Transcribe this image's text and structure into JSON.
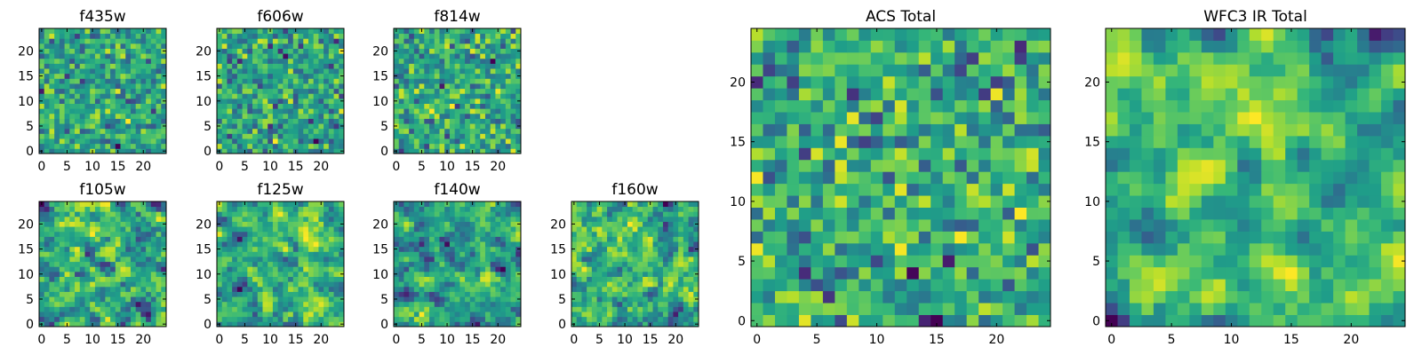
{
  "chart_data": [
    {
      "type": "heatmap",
      "title": "f435w",
      "grid_size": [
        25,
        25
      ],
      "xlim": [
        -0.5,
        24.5
      ],
      "ylim": [
        -0.5,
        24.5
      ],
      "xticks": [
        "0",
        "5",
        "10",
        "15",
        "20"
      ],
      "yticks": [
        "0",
        "5",
        "10",
        "15",
        "20"
      ],
      "colormap": "viridis",
      "seed": 11,
      "smoothing": 0
    },
    {
      "type": "heatmap",
      "title": "f606w",
      "grid_size": [
        25,
        25
      ],
      "xlim": [
        -0.5,
        24.5
      ],
      "ylim": [
        -0.5,
        24.5
      ],
      "xticks": [
        "0",
        "5",
        "10",
        "15",
        "20"
      ],
      "yticks": [
        "0",
        "5",
        "10",
        "15",
        "20"
      ],
      "colormap": "viridis",
      "seed": 23,
      "smoothing": 0
    },
    {
      "type": "heatmap",
      "title": "f814w",
      "grid_size": [
        25,
        25
      ],
      "xlim": [
        -0.5,
        24.5
      ],
      "ylim": [
        -0.5,
        24.5
      ],
      "xticks": [
        "0",
        "5",
        "10",
        "15",
        "20"
      ],
      "yticks": [
        "0",
        "5",
        "10",
        "15",
        "20"
      ],
      "colormap": "viridis",
      "seed": 37,
      "smoothing": 0
    },
    {
      "type": "heatmap",
      "title": "f105w",
      "grid_size": [
        25,
        25
      ],
      "xlim": [
        -0.5,
        24.5
      ],
      "ylim": [
        -0.5,
        24.5
      ],
      "xticks": [
        "0",
        "5",
        "10",
        "15",
        "20"
      ],
      "yticks": [
        "0",
        "5",
        "10",
        "15",
        "20"
      ],
      "colormap": "viridis",
      "seed": 41,
      "smoothing": 2
    },
    {
      "type": "heatmap",
      "title": "f125w",
      "grid_size": [
        25,
        25
      ],
      "xlim": [
        -0.5,
        24.5
      ],
      "ylim": [
        -0.5,
        24.5
      ],
      "xticks": [
        "0",
        "5",
        "10",
        "15",
        "20"
      ],
      "yticks": [
        "0",
        "5",
        "10",
        "15",
        "20"
      ],
      "colormap": "viridis",
      "seed": 53,
      "smoothing": 2
    },
    {
      "type": "heatmap",
      "title": "f140w",
      "grid_size": [
        25,
        25
      ],
      "xlim": [
        -0.5,
        24.5
      ],
      "ylim": [
        -0.5,
        24.5
      ],
      "xticks": [
        "0",
        "5",
        "10",
        "15",
        "20"
      ],
      "yticks": [
        "0",
        "5",
        "10",
        "15",
        "20"
      ],
      "colormap": "viridis",
      "seed": 67,
      "smoothing": 2
    },
    {
      "type": "heatmap",
      "title": "f160w",
      "grid_size": [
        25,
        25
      ],
      "xlim": [
        -0.5,
        24.5
      ],
      "ylim": [
        -0.5,
        24.5
      ],
      "xticks": [
        "0",
        "5",
        "10",
        "15",
        "20"
      ],
      "yticks": [
        "0",
        "5",
        "10",
        "15",
        "20"
      ],
      "colormap": "viridis",
      "seed": 79,
      "smoothing": 2
    },
    {
      "type": "heatmap",
      "title": "ACS Total",
      "grid_size": [
        25,
        25
      ],
      "xlim": [
        -0.5,
        24.5
      ],
      "ylim": [
        -0.5,
        24.5
      ],
      "xticks": [
        "0",
        "5",
        "10",
        "15",
        "20"
      ],
      "yticks": [
        "0",
        "5",
        "10",
        "15",
        "20"
      ],
      "colormap": "viridis",
      "seed": 83,
      "smoothing": 0
    },
    {
      "type": "heatmap",
      "title": "WFC3 IR Total",
      "grid_size": [
        25,
        25
      ],
      "xlim": [
        -0.5,
        24.5
      ],
      "ylim": [
        -0.5,
        24.5
      ],
      "xticks": [
        "0",
        "5",
        "10",
        "15",
        "20"
      ],
      "yticks": [
        "0",
        "5",
        "10",
        "15",
        "20"
      ],
      "colormap": "viridis",
      "seed": 97,
      "smoothing": 3
    }
  ]
}
